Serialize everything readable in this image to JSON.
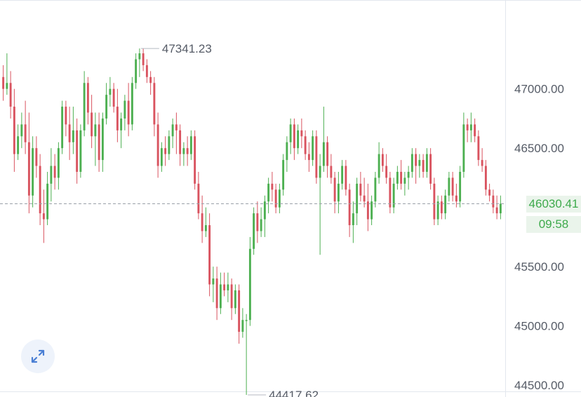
{
  "colors": {
    "up": "#4caf50",
    "down": "#d9535f",
    "grid_line": "#e3e7ee",
    "price_line": "#9aa0a8",
    "axis_text": "#555b66",
    "current_price_text": "#3eaa4c",
    "current_price_bg": "#eaf4eb",
    "expand_button_bg": "#eef3fb",
    "expand_icon": "#4a7fd4"
  },
  "chart_data": {
    "type": "candlestick",
    "ylim": [
      44400,
      47750
    ],
    "y_ticks": [
      "47000.00",
      "46500.00",
      "46030.41",
      "45500.00",
      "45000.00",
      "44500.00"
    ],
    "current_price": "46030.41",
    "countdown": "09:58",
    "high_annotation": "47341.23",
    "low_annotation": "44417.62",
    "candles": [
      [
        47100,
        47200,
        46900,
        47000
      ],
      [
        47000,
        47300,
        46950,
        47050
      ],
      [
        47050,
        47150,
        46750,
        46850
      ],
      [
        46850,
        47000,
        46300,
        46450
      ],
      [
        46450,
        46700,
        46400,
        46600
      ],
      [
        46600,
        46800,
        46500,
        46700
      ],
      [
        46700,
        46900,
        46450,
        46550
      ],
      [
        46550,
        46800,
        45950,
        46100
      ],
      [
        46100,
        46600,
        46000,
        46500
      ],
      [
        46500,
        46600,
        46250,
        46350
      ],
      [
        46350,
        46450,
        45850,
        45950
      ],
      [
        45950,
        46150,
        45700,
        45900
      ],
      [
        45900,
        46300,
        45850,
        46200
      ],
      [
        46200,
        46500,
        46050,
        46350
      ],
      [
        46350,
        46450,
        46150,
        46250
      ],
      [
        46250,
        46550,
        46150,
        46500
      ],
      [
        46500,
        46900,
        46450,
        46850
      ],
      [
        46850,
        46900,
        46600,
        46700
      ],
      [
        46700,
        46850,
        46400,
        46550
      ],
      [
        46550,
        46850,
        46450,
        46650
      ],
      [
        46650,
        46750,
        46200,
        46300
      ],
      [
        46300,
        46700,
        46250,
        46650
      ],
      [
        46650,
        47150,
        46600,
        47050
      ],
      [
        47050,
        47100,
        46700,
        46800
      ],
      [
        46800,
        46950,
        46500,
        46600
      ],
      [
        46600,
        46800,
        46350,
        46700
      ],
      [
        46700,
        46800,
        46300,
        46400
      ],
      [
        46400,
        46800,
        46300,
        46750
      ],
      [
        46750,
        47050,
        46700,
        46950
      ],
      [
        46950,
        47100,
        46850,
        47000
      ],
      [
        47000,
        47050,
        46800,
        46850
      ],
      [
        46850,
        47000,
        46550,
        46650
      ],
      [
        46650,
        46800,
        46500,
        46750
      ],
      [
        46750,
        46950,
        46650,
        46900
      ],
      [
        46900,
        47050,
        46600,
        46700
      ],
      [
        46700,
        47100,
        46650,
        47050
      ],
      [
        47050,
        47300,
        47000,
        47250
      ],
      [
        47250,
        47341,
        47100,
        47300
      ],
      [
        47300,
        47341,
        47150,
        47200
      ],
      [
        47200,
        47250,
        47050,
        47100
      ],
      [
        47100,
        47150,
        46950,
        47050
      ],
      [
        47050,
        47100,
        46600,
        46700
      ],
      [
        46700,
        46800,
        46250,
        46350
      ],
      [
        46350,
        46550,
        46300,
        46500
      ],
      [
        46500,
        46600,
        46350,
        46450
      ],
      [
        46450,
        46650,
        46400,
        46600
      ],
      [
        46600,
        46750,
        46500,
        46700
      ],
      [
        46700,
        46800,
        46450,
        46650
      ],
      [
        46650,
        46700,
        46350,
        46450
      ],
      [
        46450,
        46550,
        46350,
        46500
      ],
      [
        46500,
        46600,
        46350,
        46450
      ],
      [
        46450,
        46650,
        46400,
        46600
      ],
      [
        46600,
        46650,
        46150,
        46200
      ],
      [
        46200,
        46300,
        45900,
        45950
      ],
      [
        45950,
        46100,
        45700,
        45800
      ],
      [
        45800,
        46000,
        45750,
        45850
      ],
      [
        45850,
        45950,
        45250,
        45350
      ],
      [
        45350,
        45500,
        45200,
        45400
      ],
      [
        45400,
        45500,
        45050,
        45150
      ],
      [
        45150,
        45450,
        45100,
        45350
      ],
      [
        45350,
        45450,
        45250,
        45300
      ],
      [
        45300,
        45450,
        45200,
        45350
      ],
      [
        45350,
        45400,
        45050,
        45150
      ],
      [
        45150,
        45350,
        45100,
        45300
      ],
      [
        45300,
        45350,
        44850,
        44950
      ],
      [
        44950,
        45150,
        44900,
        45050
      ],
      [
        45050,
        45100,
        44417.62,
        45050
      ],
      [
        45050,
        45750,
        45000,
        45650
      ],
      [
        45650,
        46000,
        45600,
        45950
      ],
      [
        45950,
        46050,
        45700,
        45800
      ],
      [
        45800,
        46000,
        45750,
        45900
      ],
      [
        45900,
        46100,
        45750,
        46050
      ],
      [
        46050,
        46250,
        45950,
        46200
      ],
      [
        46200,
        46300,
        46050,
        46150
      ],
      [
        46150,
        46200,
        45950,
        46000
      ],
      [
        46000,
        46200,
        45950,
        46150
      ],
      [
        46150,
        46450,
        46100,
        46400
      ],
      [
        46400,
        46600,
        46300,
        46550
      ],
      [
        46550,
        46750,
        46450,
        46700
      ],
      [
        46700,
        46750,
        46400,
        46500
      ],
      [
        46500,
        46700,
        46450,
        46650
      ],
      [
        46650,
        46750,
        46500,
        46600
      ],
      [
        46600,
        46650,
        46400,
        46450
      ],
      [
        46450,
        46550,
        46300,
        46400
      ],
      [
        46400,
        46650,
        46350,
        46600
      ],
      [
        46600,
        46650,
        46200,
        46250
      ],
      [
        46250,
        46450,
        45600,
        46350
      ],
      [
        46350,
        46850,
        46300,
        46550
      ],
      [
        46550,
        46600,
        46250,
        46350
      ],
      [
        46350,
        46450,
        46200,
        46250
      ],
      [
        46250,
        46300,
        45950,
        46050
      ],
      [
        46050,
        46300,
        45950,
        46200
      ],
      [
        46200,
        46400,
        46150,
        46350
      ],
      [
        46350,
        46400,
        46100,
        46150
      ],
      [
        46150,
        46200,
        45750,
        45850
      ],
      [
        45850,
        46050,
        45700,
        45950
      ],
      [
        45950,
        46250,
        45850,
        46200
      ],
      [
        46200,
        46300,
        46050,
        46100
      ],
      [
        46100,
        46250,
        46000,
        46050
      ],
      [
        46050,
        46200,
        45800,
        45900
      ],
      [
        45900,
        46100,
        45850,
        46050
      ],
      [
        46050,
        46300,
        46000,
        46250
      ],
      [
        46250,
        46550,
        46200,
        46450
      ],
      [
        46450,
        46500,
        46300,
        46350
      ],
      [
        46350,
        46450,
        46200,
        46250
      ],
      [
        46250,
        46300,
        45950,
        46000
      ],
      [
        46000,
        46250,
        45950,
        46200
      ],
      [
        46200,
        46350,
        46150,
        46300
      ],
      [
        46300,
        46400,
        46150,
        46200
      ],
      [
        46200,
        46300,
        46100,
        46250
      ],
      [
        46250,
        46350,
        46150,
        46300
      ],
      [
        46300,
        46500,
        46250,
        46450
      ],
      [
        46450,
        46500,
        46200,
        46350
      ],
      [
        46350,
        46450,
        46250,
        46400
      ],
      [
        46400,
        46450,
        46250,
        46300
      ],
      [
        46300,
        46500,
        46250,
        46450
      ],
      [
        46450,
        46500,
        46150,
        46200
      ],
      [
        46200,
        46250,
        45850,
        45900
      ],
      [
        45900,
        46100,
        45850,
        46050
      ],
      [
        46050,
        46100,
        45900,
        45950
      ],
      [
        45950,
        46150,
        45900,
        46100
      ],
      [
        46100,
        46300,
        46050,
        46250
      ],
      [
        46250,
        46300,
        46050,
        46100
      ],
      [
        46100,
        46200,
        46000,
        46050
      ],
      [
        46050,
        46350,
        46000,
        46300
      ],
      [
        46300,
        46800,
        46250,
        46700
      ],
      [
        46700,
        46750,
        46550,
        46650
      ],
      [
        46650,
        46800,
        46550,
        46700
      ],
      [
        46700,
        46750,
        46550,
        46600
      ],
      [
        46600,
        46650,
        46350,
        46400
      ],
      [
        46400,
        46500,
        46300,
        46350
      ],
      [
        46350,
        46400,
        46100,
        46150
      ],
      [
        46150,
        46200,
        46050,
        46100
      ],
      [
        46100,
        46150,
        45950,
        46000
      ],
      [
        46000,
        46100,
        45900,
        45950
      ],
      [
        45950,
        46100,
        45900,
        46030.41
      ]
    ]
  },
  "expand_button": {
    "icon": "expand-arrows-icon"
  }
}
